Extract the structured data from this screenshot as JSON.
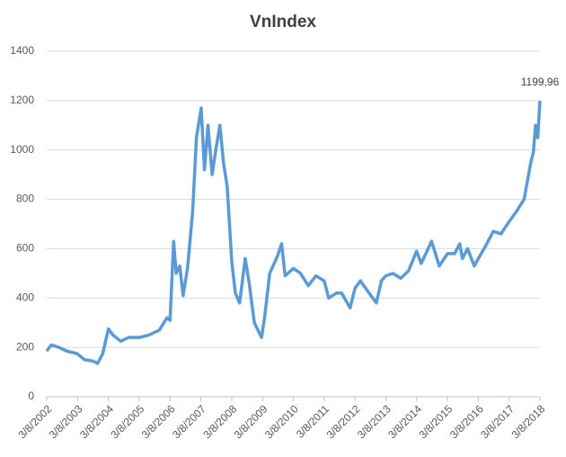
{
  "chart_data": {
    "type": "line",
    "title": "VnIndex",
    "x": [
      "3/8/2002",
      "5/1/2002",
      "8/1/2002",
      "11/1/2002",
      "3/1/2003",
      "6/1/2003",
      "9/1/2003",
      "11/1/2003",
      "1/1/2004",
      "3/8/2004",
      "5/1/2004",
      "8/1/2004",
      "11/1/2004",
      "3/8/2005",
      "7/1/2005",
      "11/1/2005",
      "2/1/2006",
      "3/8/2006",
      "4/20/2006",
      "5/20/2006",
      "7/1/2006",
      "8/10/2006",
      "10/1/2006",
      "12/1/2006",
      "1/15/2007",
      "3/12/2007",
      "4/20/2007",
      "6/1/2007",
      "7/20/2007",
      "9/1/2007",
      "10/20/2007",
      "12/1/2007",
      "1/15/2008",
      "3/8/2008",
      "4/20/2008",
      "6/10/2008",
      "8/15/2008",
      "10/1/2008",
      "12/1/2008",
      "2/24/2009",
      "4/1/2009",
      "6/1/2009",
      "9/1/2009",
      "10/20/2009",
      "12/1/2009",
      "3/8/2010",
      "6/1/2010",
      "9/1/2010",
      "12/1/2010",
      "3/8/2011",
      "5/1/2011",
      "8/1/2011",
      "10/1/2011",
      "1/10/2012",
      "3/8/2012",
      "5/10/2012",
      "8/1/2012",
      "11/15/2012",
      "1/15/2013",
      "3/8/2013",
      "6/1/2013",
      "9/1/2013",
      "12/1/2013",
      "3/8/2014",
      "5/1/2014",
      "9/1/2014",
      "12/1/2014",
      "3/8/2015",
      "6/1/2015",
      "8/1/2015",
      "9/1/2015",
      "11/1/2015",
      "1/20/2016",
      "3/8/2016",
      "6/1/2016",
      "9/1/2016",
      "12/1/2016",
      "3/8/2017",
      "6/1/2017",
      "9/1/2017",
      "11/20/2017",
      "12/20/2017",
      "1/15/2018",
      "2/10/2018",
      "3/8/2018"
    ],
    "series": [
      {
        "name": "VnIndex",
        "color": "#5b9bd5",
        "values": [
          185,
          210,
          200,
          185,
          175,
          150,
          145,
          135,
          175,
          275,
          250,
          225,
          240,
          240,
          250,
          270,
          320,
          310,
          630,
          500,
          530,
          410,
          520,
          750,
          1050,
          1170,
          920,
          1100,
          900,
          1000,
          1100,
          950,
          850,
          550,
          420,
          380,
          560,
          460,
          300,
          240,
          320,
          500,
          570,
          620,
          490,
          520,
          500,
          450,
          490,
          470,
          400,
          420,
          420,
          360,
          440,
          470,
          430,
          380,
          470,
          490,
          500,
          480,
          510,
          590,
          540,
          630,
          530,
          580,
          580,
          620,
          560,
          600,
          530,
          560,
          610,
          670,
          660,
          710,
          750,
          800,
          950,
          990,
          1100,
          1050,
          1199.96
        ],
        "value_labels": [
          null,
          null,
          null,
          null,
          null,
          null,
          null,
          null,
          null,
          null,
          null,
          null,
          null,
          null,
          null,
          null,
          null,
          null,
          null,
          null,
          null,
          null,
          null,
          null,
          null,
          null,
          null,
          null,
          null,
          null,
          null,
          null,
          null,
          null,
          null,
          null,
          null,
          null,
          null,
          null,
          null,
          null,
          null,
          null,
          null,
          null,
          null,
          null,
          null,
          null,
          null,
          null,
          null,
          null,
          null,
          null,
          null,
          null,
          null,
          null,
          null,
          null,
          null,
          null,
          null,
          null,
          null,
          null,
          null,
          null,
          null,
          null,
          null,
          null,
          null,
          null,
          null,
          null,
          null,
          null,
          null,
          null,
          null,
          null,
          "1199,96"
        ]
      }
    ],
    "xlim": [
      "3/8/2002",
      "3/8/2018"
    ],
    "xticks": [
      "3/8/2002",
      "3/8/2003",
      "3/8/2004",
      "3/8/2005",
      "3/8/2006",
      "3/8/2007",
      "3/8/2008",
      "3/8/2009",
      "3/8/2010",
      "3/8/2011",
      "3/8/2012",
      "3/8/2013",
      "3/8/2014",
      "3/8/2015",
      "3/8/2016",
      "3/8/2017",
      "3/8/2018"
    ],
    "ylim": [
      0,
      1400
    ],
    "yticks": [
      0,
      200,
      400,
      600,
      800,
      1000,
      1200,
      1400
    ],
    "grid": true
  }
}
